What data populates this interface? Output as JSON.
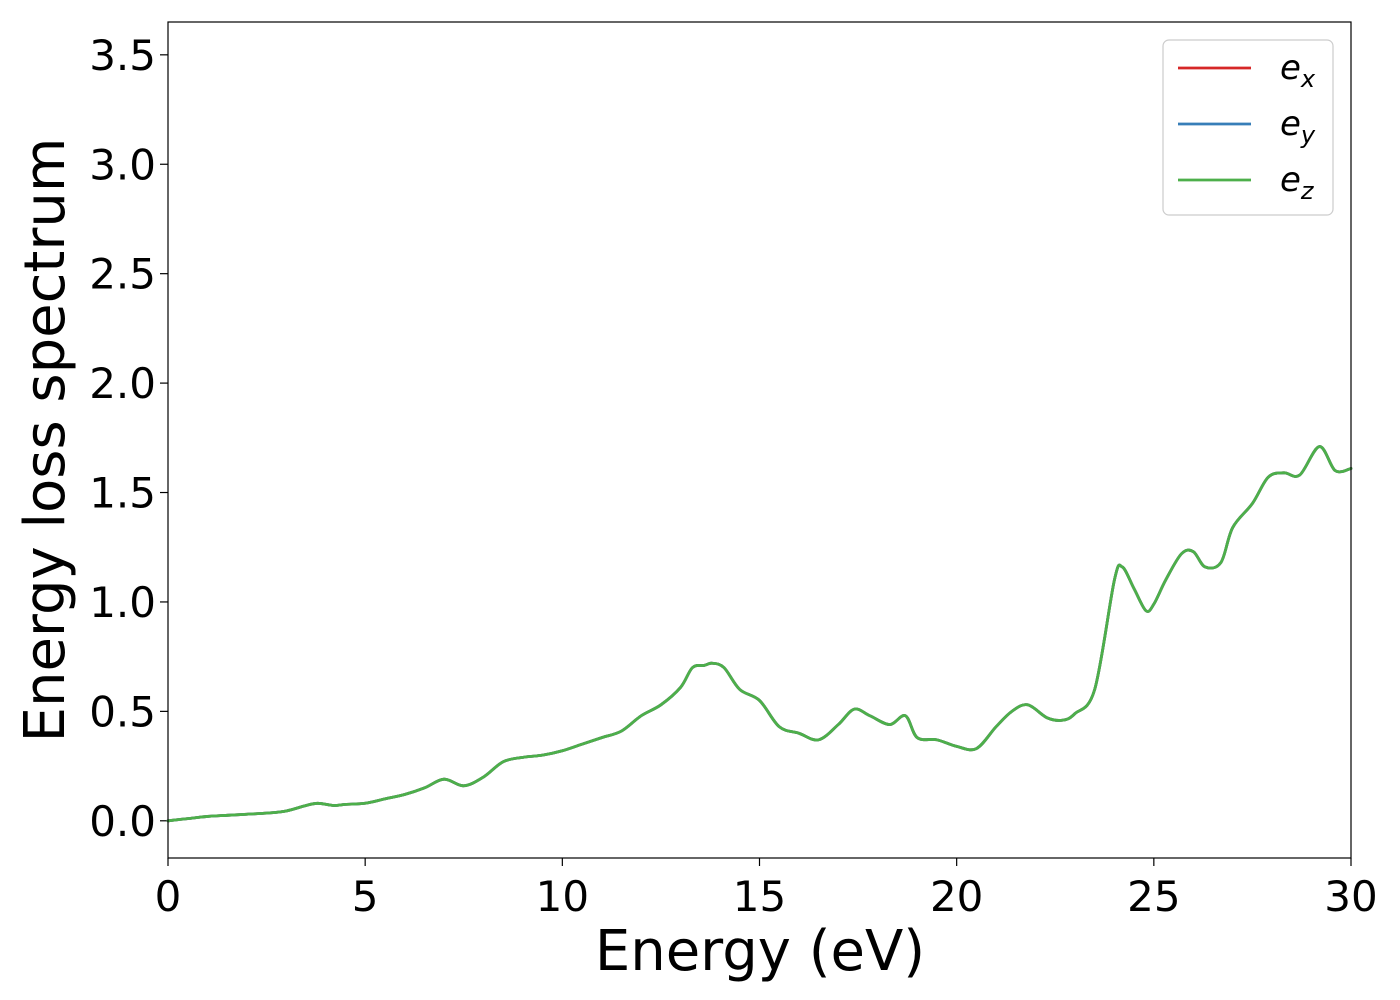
{
  "chart_data": {
    "type": "line",
    "title": "",
    "xlabel": "Energy (eV)",
    "ylabel": "Energy loss spectrum",
    "xlim": [
      0,
      30
    ],
    "ylim": [
      -0.17,
      3.65
    ],
    "xticks": [
      0,
      5,
      10,
      15,
      20,
      25,
      30
    ],
    "xtick_labels": [
      "0",
      "5",
      "10",
      "15",
      "20",
      "25",
      "30"
    ],
    "yticks": [
      0.0,
      0.5,
      1.0,
      1.5,
      2.0,
      2.5,
      3.0,
      3.5
    ],
    "ytick_labels": [
      "0.0",
      "0.5",
      "1.0",
      "1.5",
      "2.0",
      "2.5",
      "3.0",
      "3.5"
    ],
    "grid": false,
    "legend_position": "top-right",
    "x": [
      0,
      0.5,
      1.0,
      1.5,
      2.0,
      2.5,
      3.0,
      3.5,
      3.8,
      4.2,
      4.5,
      5.0,
      5.5,
      6.0,
      6.5,
      7.0,
      7.5,
      8.0,
      8.5,
      9.0,
      9.5,
      10.0,
      10.5,
      11.0,
      11.5,
      12.0,
      12.5,
      13.0,
      13.3,
      13.6,
      13.8,
      14.1,
      14.5,
      15.0,
      15.5,
      16.0,
      16.5,
      17.0,
      17.4,
      17.8,
      18.3,
      18.7,
      19.0,
      19.5,
      20.0,
      20.5,
      21.0,
      21.4,
      21.8,
      22.3,
      22.7,
      23.0,
      23.5,
      24.0,
      24.2,
      24.5,
      24.8,
      25.0,
      25.3,
      25.7,
      26.0,
      26.3,
      26.7,
      27.0,
      27.5,
      27.9,
      28.3,
      28.7,
      29.2,
      29.6,
      30.0
    ],
    "series": [
      {
        "name": "e_x",
        "label_base": "e",
        "label_sub": "x",
        "color": "#d62728",
        "values": [
          0.0,
          0.01,
          0.02,
          0.025,
          0.03,
          0.035,
          0.045,
          0.07,
          0.08,
          0.07,
          0.075,
          0.08,
          0.1,
          0.12,
          0.15,
          0.19,
          0.16,
          0.2,
          0.27,
          0.29,
          0.3,
          0.32,
          0.35,
          0.38,
          0.41,
          0.48,
          0.53,
          0.61,
          0.7,
          0.71,
          0.72,
          0.7,
          0.6,
          0.55,
          0.43,
          0.4,
          0.37,
          0.44,
          0.51,
          0.48,
          0.44,
          0.48,
          0.38,
          0.37,
          0.34,
          0.33,
          0.43,
          0.5,
          0.53,
          0.47,
          0.46,
          0.49,
          0.6,
          1.1,
          1.16,
          1.06,
          0.96,
          0.99,
          1.1,
          1.22,
          1.23,
          1.16,
          1.18,
          1.34,
          1.45,
          1.57,
          1.59,
          1.58,
          1.71,
          1.6,
          1.61
        ]
      },
      {
        "name": "e_y",
        "label_base": "e",
        "label_sub": "y",
        "color": "#377eb8",
        "values": [
          0.0,
          0.01,
          0.02,
          0.025,
          0.03,
          0.035,
          0.045,
          0.07,
          0.08,
          0.07,
          0.075,
          0.08,
          0.1,
          0.12,
          0.15,
          0.19,
          0.16,
          0.2,
          0.27,
          0.29,
          0.3,
          0.32,
          0.35,
          0.38,
          0.41,
          0.48,
          0.53,
          0.61,
          0.7,
          0.71,
          0.72,
          0.7,
          0.6,
          0.55,
          0.43,
          0.4,
          0.37,
          0.44,
          0.51,
          0.48,
          0.44,
          0.48,
          0.38,
          0.37,
          0.34,
          0.33,
          0.43,
          0.5,
          0.53,
          0.47,
          0.46,
          0.49,
          0.6,
          1.1,
          1.16,
          1.06,
          0.96,
          0.99,
          1.1,
          1.22,
          1.23,
          1.16,
          1.18,
          1.34,
          1.45,
          1.57,
          1.59,
          1.58,
          1.71,
          1.6,
          1.61
        ]
      },
      {
        "name": "e_z",
        "label_base": "e",
        "label_sub": "z",
        "color": "#4daf4a",
        "values": [
          0.0,
          0.01,
          0.02,
          0.025,
          0.03,
          0.035,
          0.045,
          0.07,
          0.08,
          0.07,
          0.075,
          0.08,
          0.1,
          0.12,
          0.15,
          0.19,
          0.16,
          0.2,
          0.27,
          0.29,
          0.3,
          0.32,
          0.35,
          0.38,
          0.41,
          0.48,
          0.53,
          0.61,
          0.7,
          0.71,
          0.72,
          0.7,
          0.6,
          0.55,
          0.43,
          0.4,
          0.37,
          0.44,
          0.51,
          0.48,
          0.44,
          0.48,
          0.38,
          0.37,
          0.34,
          0.33,
          0.43,
          0.5,
          0.53,
          0.47,
          0.46,
          0.49,
          0.6,
          1.1,
          1.16,
          1.06,
          0.96,
          0.99,
          1.1,
          1.22,
          1.23,
          1.16,
          1.18,
          1.34,
          1.45,
          1.57,
          1.59,
          1.58,
          1.71,
          1.6,
          1.61
        ]
      }
    ]
  }
}
